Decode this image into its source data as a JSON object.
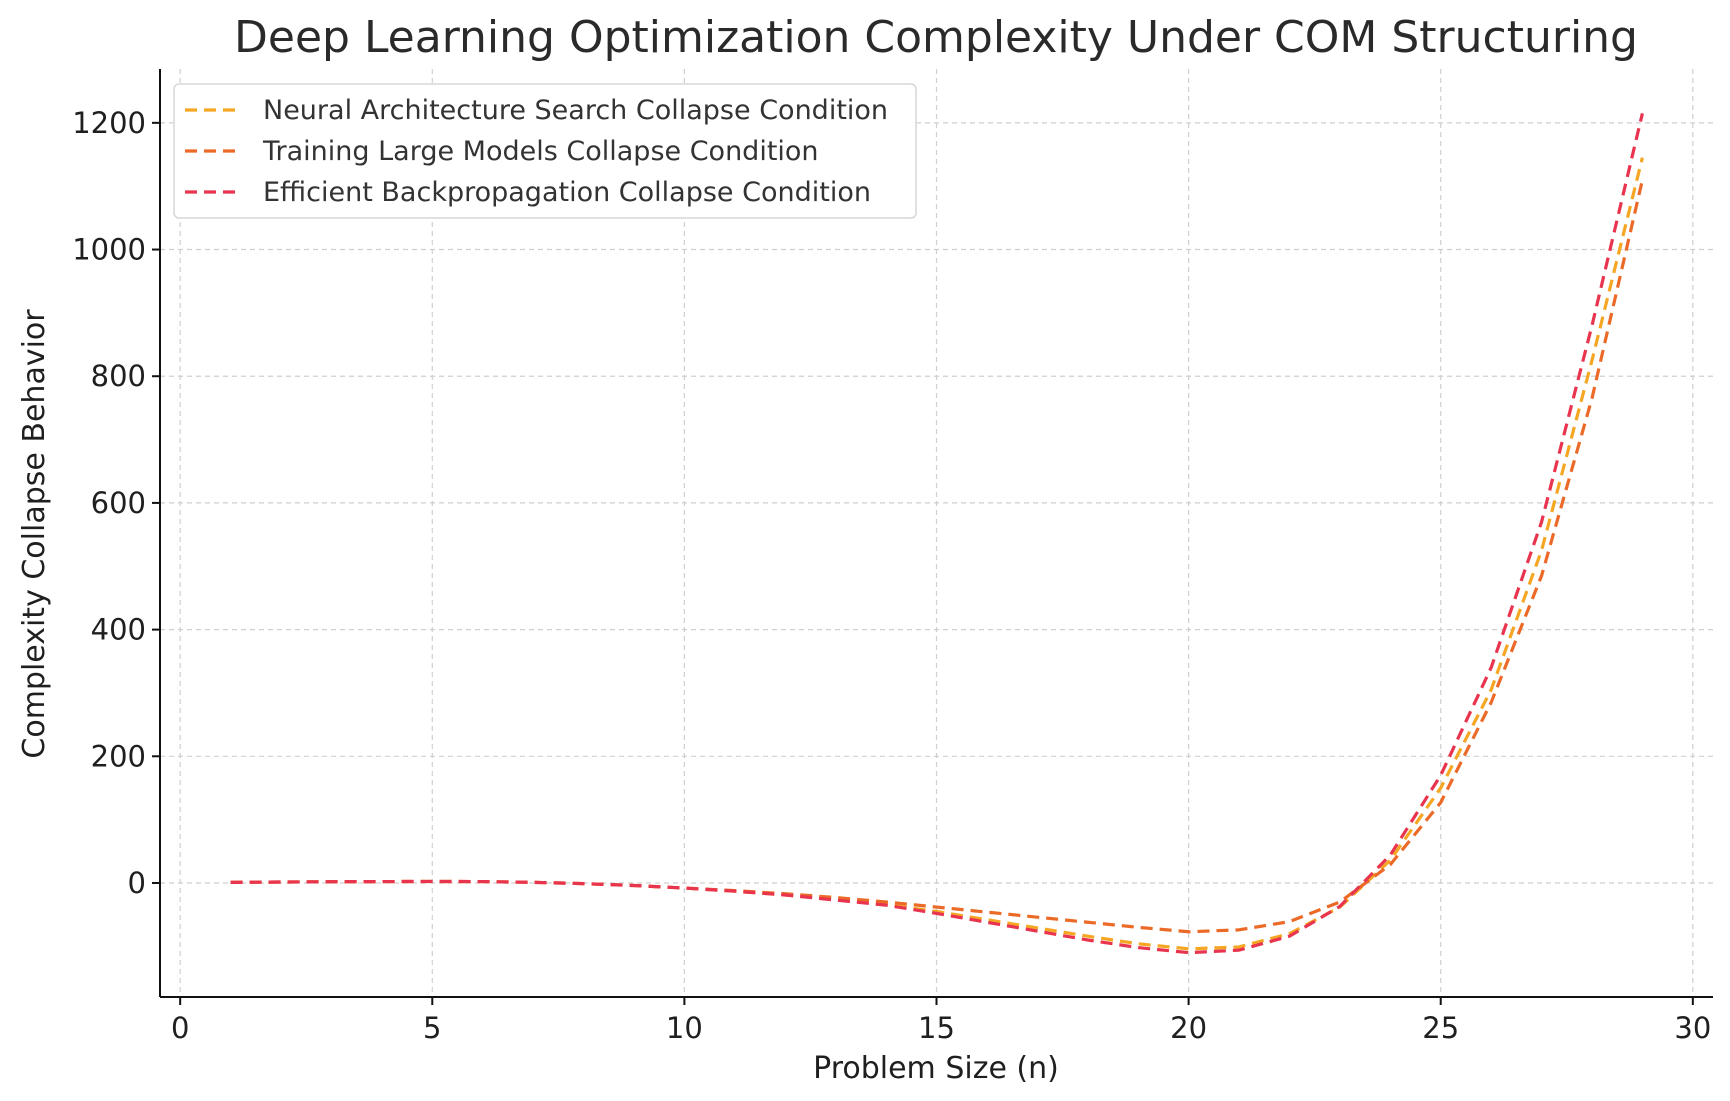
{
  "chart_data": {
    "type": "line",
    "title": "Deep Learning Optimization Complexity Under COM Structuring",
    "xlabel": "Problem Size (n)",
    "ylabel": "Complexity Collapse Behavior",
    "xlim": [
      -0.4,
      30.4
    ],
    "ylim": [
      -180,
      1285
    ],
    "xticks": [
      0,
      5,
      10,
      15,
      20,
      25,
      30
    ],
    "yticks": [
      0,
      200,
      400,
      600,
      800,
      1000,
      1200
    ],
    "grid": true,
    "legend_position": "top-left",
    "x": [
      1,
      2,
      3,
      4,
      5,
      6,
      7,
      8,
      9,
      10,
      11,
      12,
      13,
      14,
      15,
      16,
      17,
      18,
      19,
      20,
      21,
      22,
      23,
      24,
      25,
      26,
      27,
      28,
      29
    ],
    "series": [
      {
        "name": "Neural Architecture Search Collapse Condition",
        "color": "#f5a623",
        "values": [
          1,
          1.5,
          2,
          2.2,
          2.4,
          2.2,
          1,
          -1,
          -4,
          -8,
          -13,
          -19,
          -26,
          -34,
          -45,
          -58,
          -71,
          -84,
          -96,
          -104,
          -101,
          -80,
          -38,
          36,
          150,
          305,
          525,
          825,
          1145
        ]
      },
      {
        "name": "Training Large Models Collapse Condition",
        "color": "#ec6a27",
        "values": [
          1,
          1.5,
          2,
          2.2,
          2.4,
          2.2,
          1,
          -1,
          -4,
          -8,
          -12,
          -17,
          -23,
          -30,
          -38,
          -46,
          -54,
          -62,
          -70,
          -77,
          -74,
          -61,
          -30,
          29,
          127,
          285,
          485,
          765,
          1110
        ]
      },
      {
        "name": "Efficient Backpropagation Collapse Condition",
        "color": "#e8344e",
        "values": [
          1,
          1.5,
          2,
          2.2,
          2.4,
          2.2,
          1,
          -1,
          -4,
          -8,
          -13,
          -19,
          -27,
          -35,
          -48,
          -62,
          -76,
          -90,
          -102,
          -110,
          -106,
          -84,
          -37,
          44,
          170,
          340,
          570,
          880,
          1215
        ]
      }
    ]
  }
}
